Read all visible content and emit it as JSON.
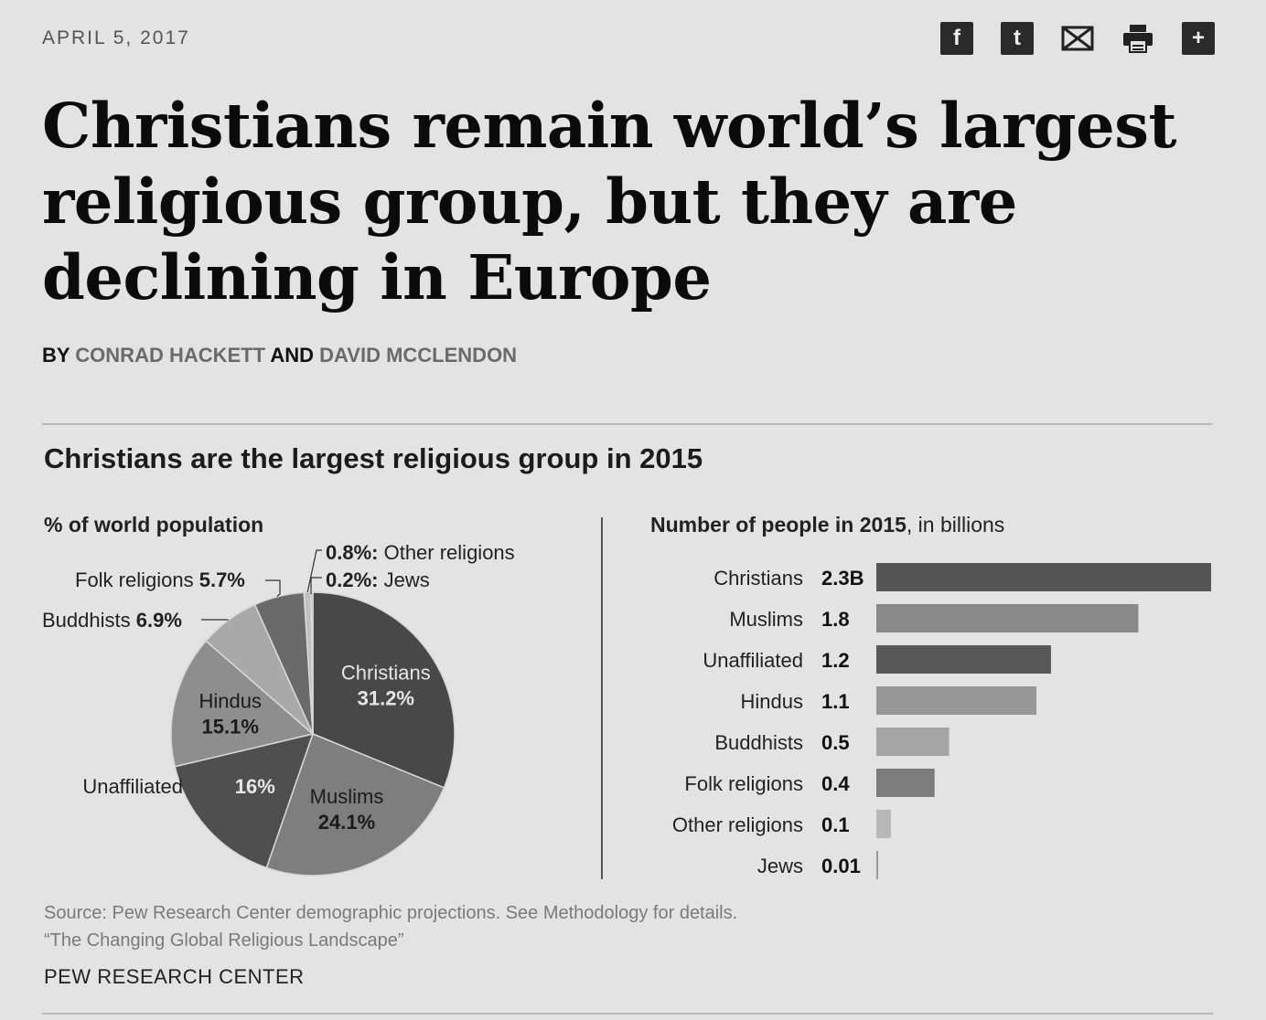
{
  "article": {
    "date": "APRIL 5, 2017",
    "title": "Christians remain world’s largest religious group, but they are declining in Europe",
    "byline_prefix": "BY",
    "author1": "CONRAD HACKETT",
    "byline_and": "AND",
    "author2": "DAVID MCCLENDON",
    "share": [
      "f",
      "t",
      "✕",
      "print",
      "+"
    ]
  },
  "chart_data": [
    {
      "type": "pie",
      "title": "Christians are the largest religious group in 2015",
      "subtitle": "% of world population",
      "labels": [
        "Christians",
        "Muslims",
        "Unaffiliated",
        "Hindus",
        "Buddhists",
        "Folk religions",
        "Other religions",
        "Jews"
      ],
      "values": [
        31.2,
        24.1,
        16,
        15.1,
        6.9,
        5.7,
        0.8,
        0.2
      ],
      "display_values": [
        "31.2%",
        "24.1%",
        "16%",
        "15.1%",
        "6.9%",
        "5.7%",
        "0.8%",
        "0.2%"
      ],
      "callouts": {
        "folk": "Folk religions",
        "folk_value": "5.7%",
        "buddhists": "Buddhists",
        "buddhists_value": "6.9%",
        "other": "0.8%: Other religions",
        "jews": "0.2%: Jews",
        "unaffiliated": "Unaffiliated"
      },
      "colors": [
        "#484848",
        "#7e7e7e",
        "#4f4f4f",
        "#8e8e8e",
        "#a9a9a9",
        "#6a6a6a",
        "#c0c0c0",
        "#a0a0a0"
      ]
    },
    {
      "type": "bar",
      "subtitle_bold": "Number of people in 2015",
      "subtitle_rest": ", in billions",
      "categories": [
        "Christians",
        "Muslims",
        "Unaffiliated",
        "Hindus",
        "Buddhists",
        "Folk religions",
        "Other religions",
        "Jews"
      ],
      "values": [
        2.3,
        1.8,
        1.2,
        1.1,
        0.5,
        0.4,
        0.1,
        0.01
      ],
      "display_values": [
        "2.3B",
        "1.8",
        "1.2",
        "1.1",
        "0.5",
        "0.4",
        "0.1",
        "0.01"
      ],
      "xlim": [
        0,
        2.3
      ],
      "colors": [
        "#555555",
        "#888888",
        "#585858",
        "#969696",
        "#a4a4a4",
        "#7c7c7c",
        "#b8b8b8",
        "#9a9a9a"
      ]
    }
  ],
  "source": {
    "line1": "Source: Pew Research Center demographic projections. See Methodology for details.",
    "line2": "“The Changing Global Religious Landscape”",
    "org": "PEW RESEARCH CENTER"
  }
}
